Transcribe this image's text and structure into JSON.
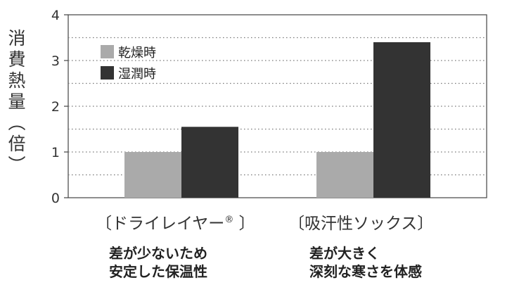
{
  "chart_data": {
    "type": "bar",
    "ylabel_chars": [
      "消",
      "費",
      "熱",
      "量",
      "︵",
      "倍",
      "︶"
    ],
    "categories": [
      "〔ドライレイヤー® 〕",
      "〔吸汗性ソックス〕"
    ],
    "category_main": [
      "〔ドライレイヤー",
      "〔吸汗性ソックス〕"
    ],
    "category_mark": "®",
    "category_close": " 〕",
    "series": [
      {
        "name": "乾燥時",
        "values": [
          1.0,
          1.0
        ],
        "color": "#aaaaaa"
      },
      {
        "name": "湿潤時",
        "values": [
          1.55,
          3.4
        ],
        "color": "#333333"
      }
    ],
    "ylim": [
      0,
      4
    ],
    "yticks": [
      0,
      1,
      2,
      3,
      4
    ],
    "grid": "dotted, every 0.5",
    "legend": "top-left",
    "notes": [
      [
        "差が少ないため",
        "安定した保温性"
      ],
      [
        "差が大きく",
        "深刻な寒さを体感"
      ]
    ]
  }
}
